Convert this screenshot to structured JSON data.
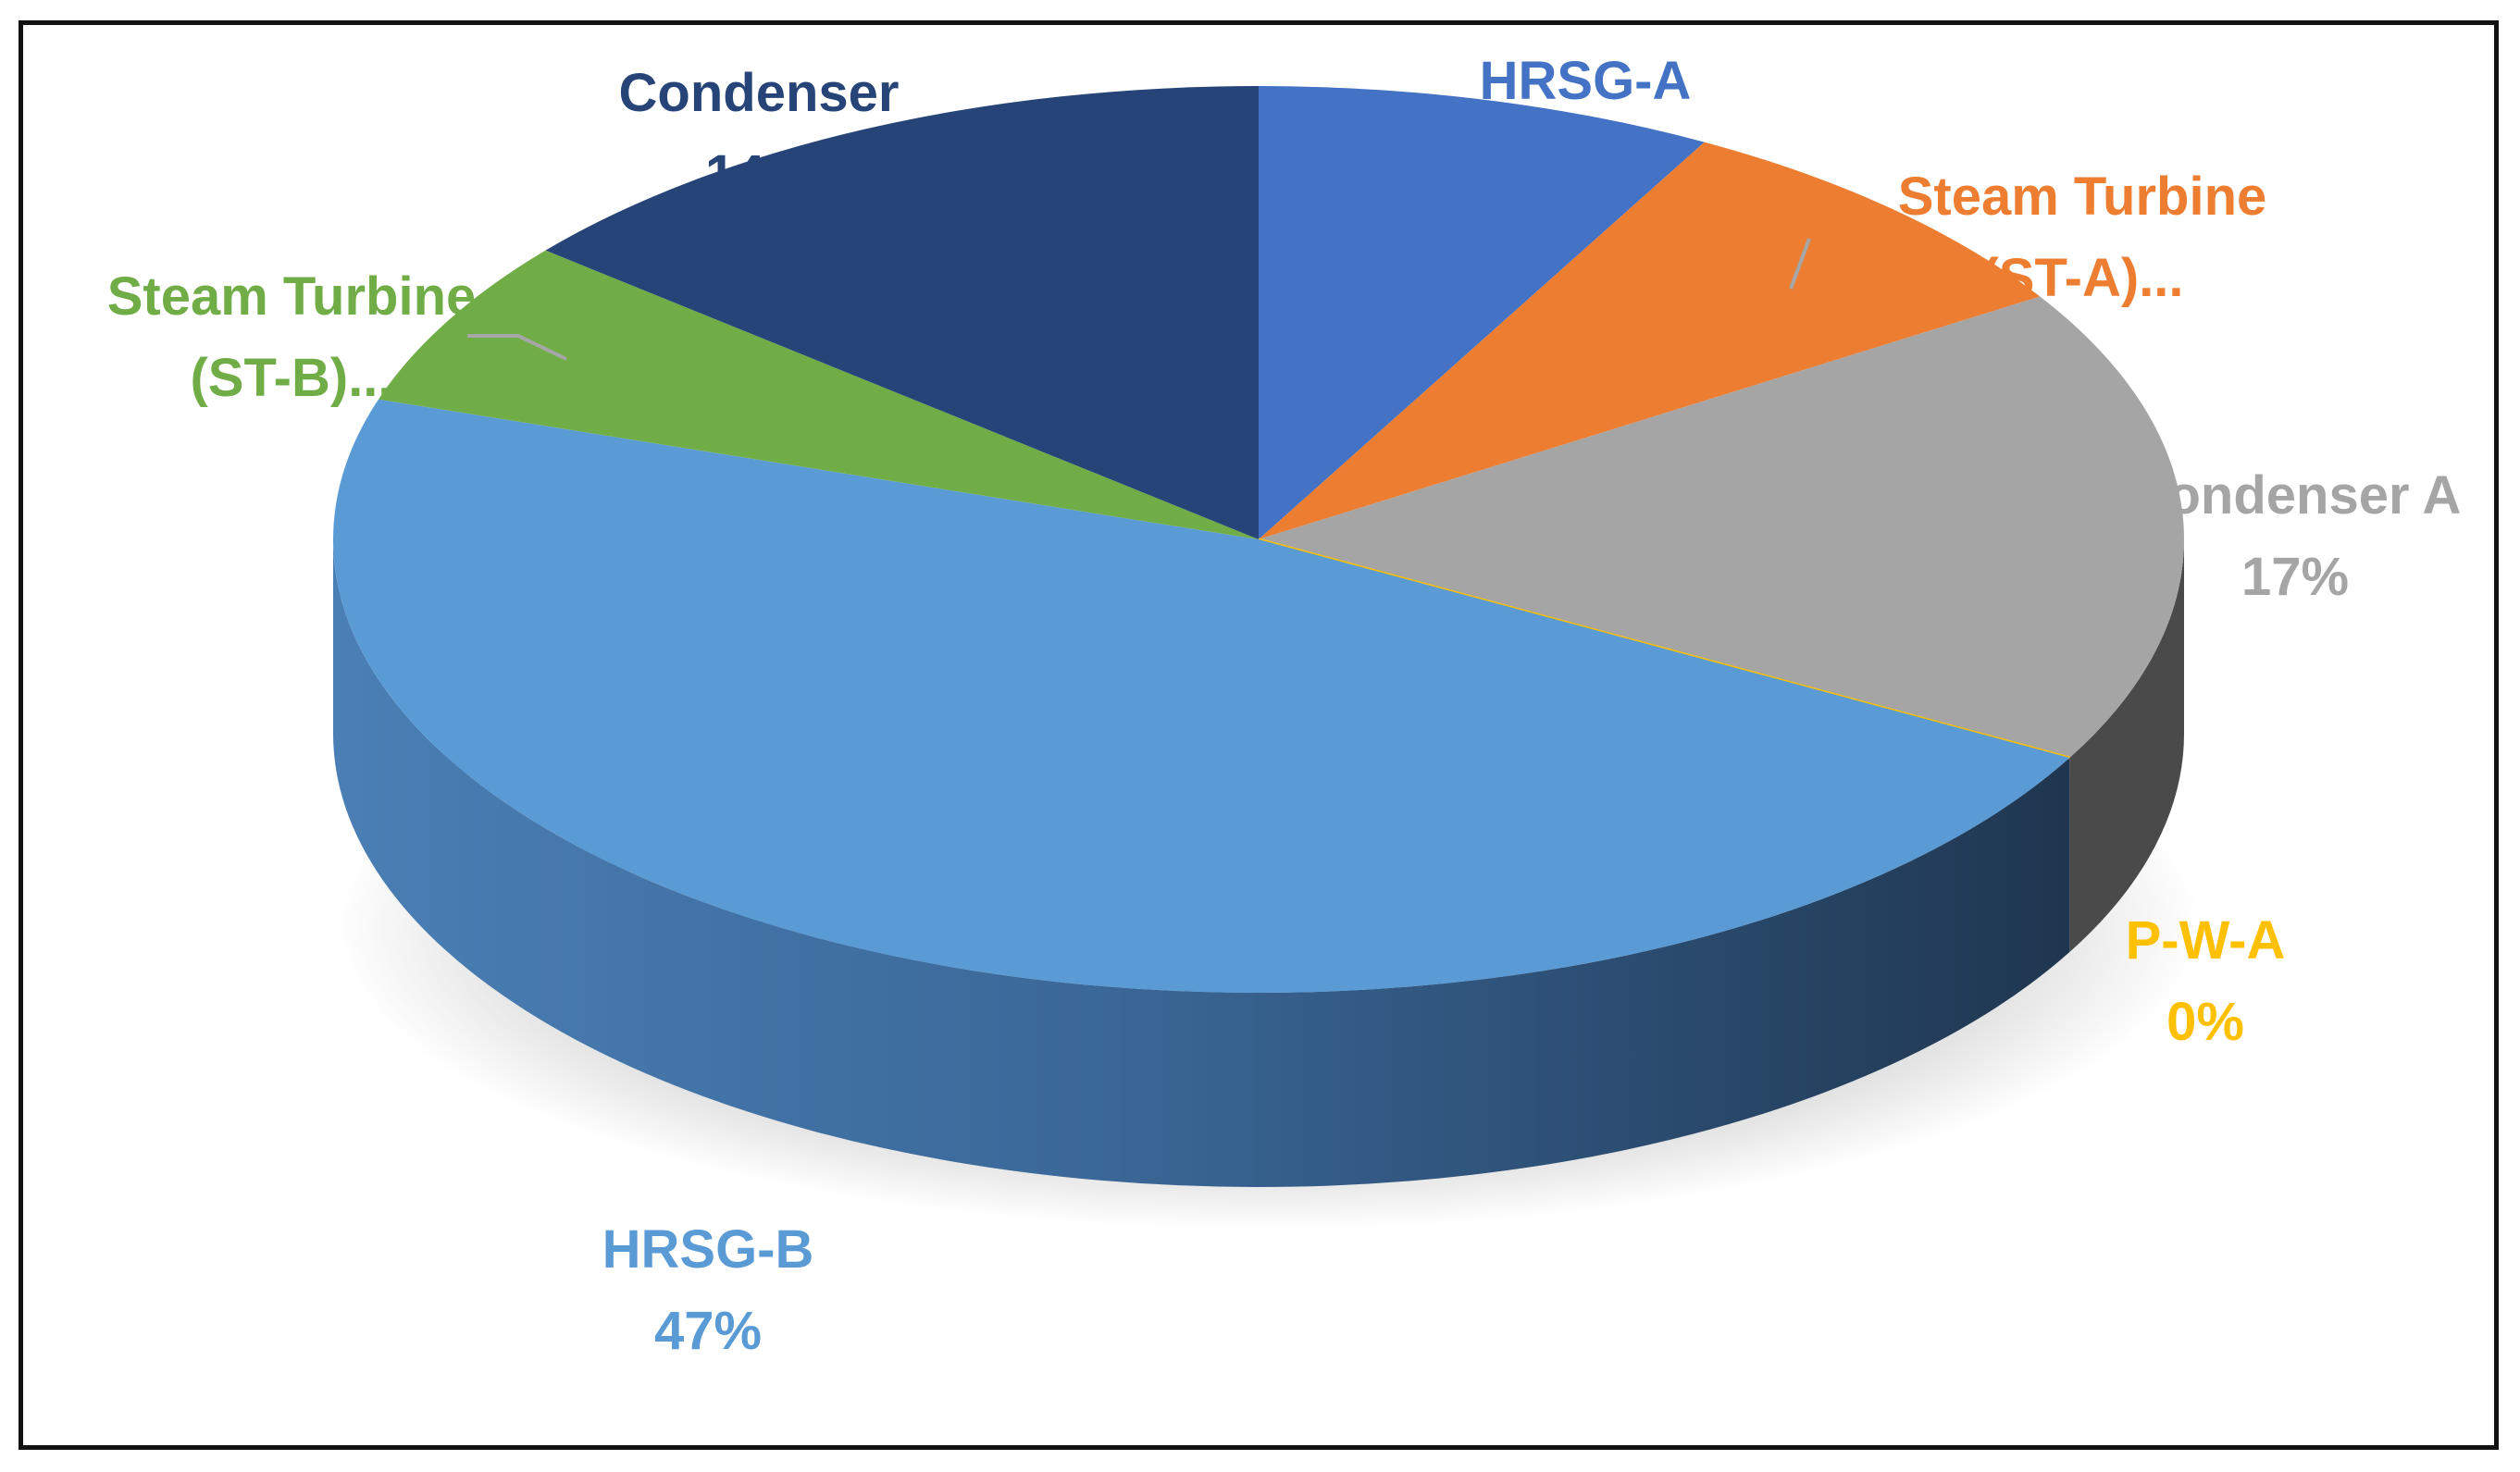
{
  "chart_data": {
    "type": "pie",
    "style": "3d",
    "title": "",
    "slices": [
      {
        "label_lines": [
          "HRSG-A"
        ],
        "pct_label": "8%",
        "value": 8,
        "color": "#4472c4"
      },
      {
        "label_lines": [
          "Steam Turbine",
          "(ST-A)..."
        ],
        "pct_label": "",
        "value": 8,
        "color": "#ed7d31"
      },
      {
        "label_lines": [
          "Condenser A"
        ],
        "pct_label": "17%",
        "value": 17,
        "color": "#a5a5a5"
      },
      {
        "label_lines": [
          "P-W-A"
        ],
        "pct_label": "0%",
        "value": 0,
        "color": "#ffc000"
      },
      {
        "label_lines": [
          "HRSG-B"
        ],
        "pct_label": "47%",
        "value": 47,
        "color": "#5b9bd5"
      },
      {
        "label_lines": [
          "Steam Turbine",
          "(ST-B)..."
        ],
        "pct_label": "",
        "value": 6,
        "color": "#70ad47"
      },
      {
        "label_lines": [
          "Condenser"
        ],
        "pct_label": "14%",
        "value": 14,
        "color": "#264478"
      }
    ]
  }
}
